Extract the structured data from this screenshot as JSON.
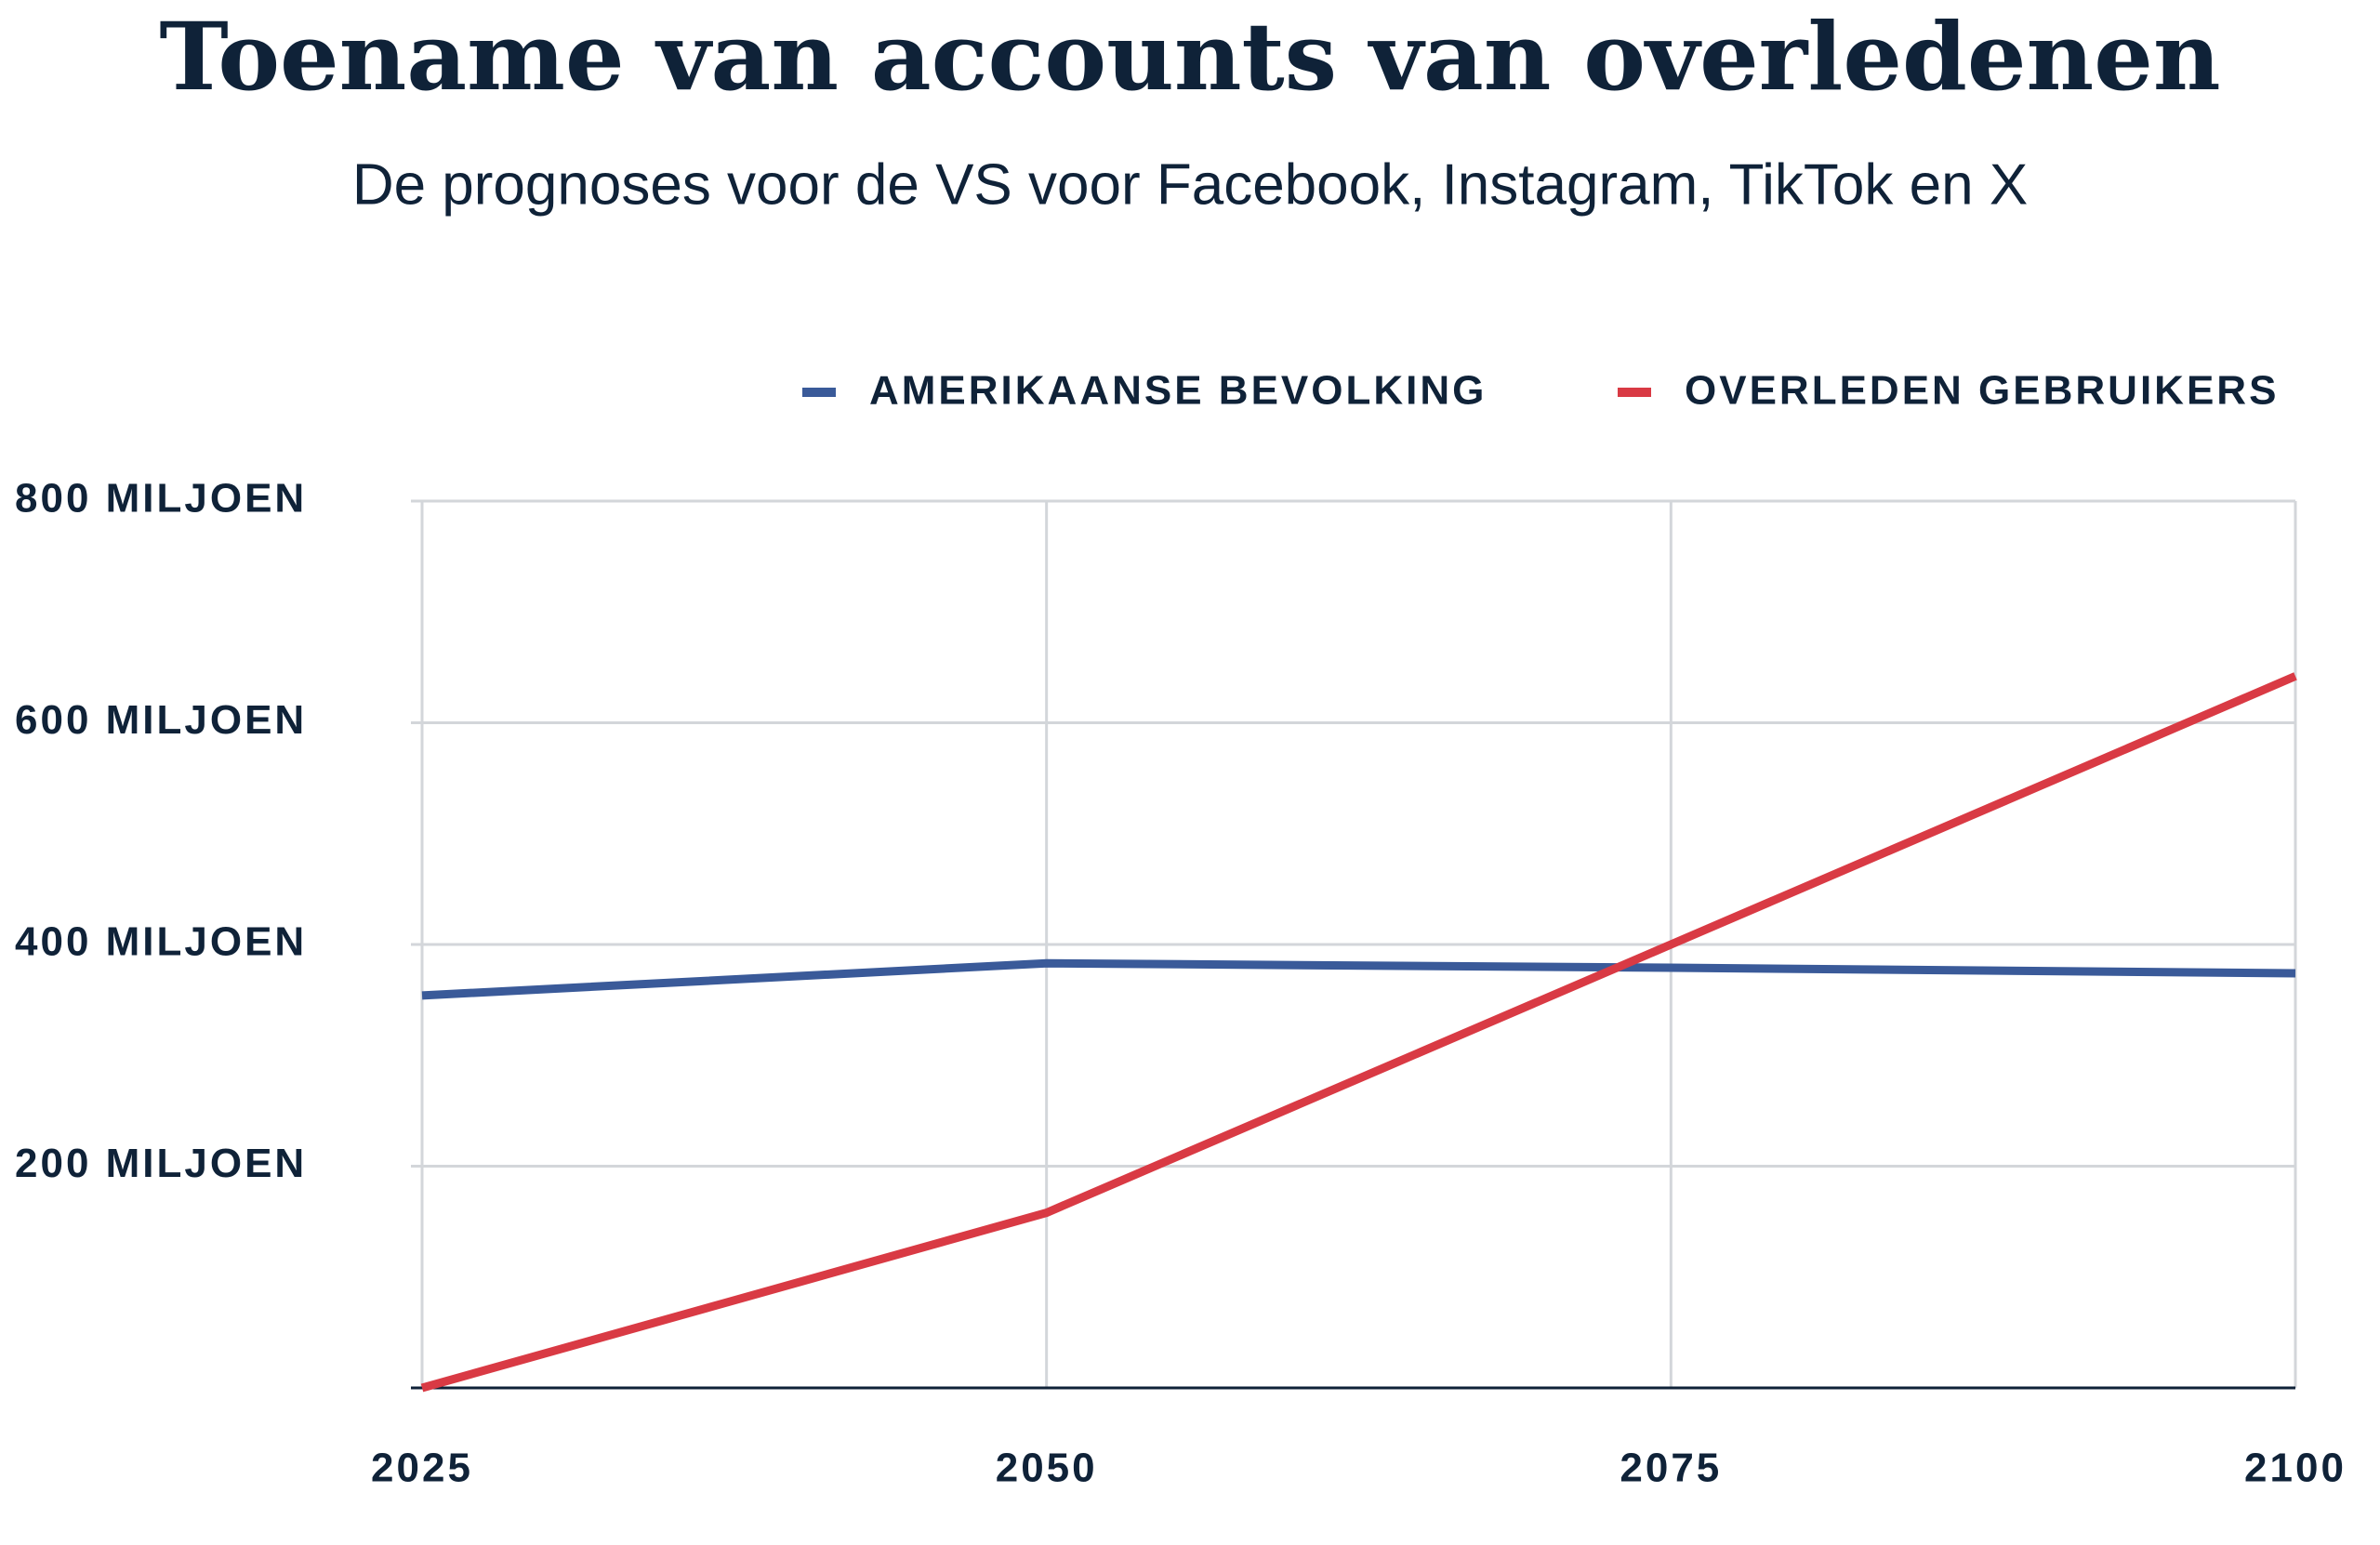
{
  "chart_data": {
    "type": "line",
    "title": "Toename van accounts van overledenen",
    "subtitle": "De prognoses voor de VS voor Facebook, Instagram, TikTok en X",
    "x": [
      2025,
      2050,
      2075,
      2100
    ],
    "series": [
      {
        "name": "AMERIKAANSE BEVOLKING",
        "color": "#3a5a99",
        "values": [
          354,
          383,
          379,
          374
        ]
      },
      {
        "name": "OVERLEDEN GEBRUIKERS",
        "color": "#d93a44",
        "values": [
          0,
          158,
          400,
          642
        ]
      }
    ],
    "xlim": [
      2025,
      2100
    ],
    "xticks": [
      2025,
      2050,
      2075,
      2100
    ],
    "ylim": [
      0,
      800
    ],
    "yticks": [
      {
        "value": 200,
        "label": "200 MILJOEN"
      },
      {
        "value": 400,
        "label": "400 MILJOEN"
      },
      {
        "value": 600,
        "label": "600 MILJOEN"
      },
      {
        "value": 800,
        "label": "800 MILJOEN"
      }
    ],
    "grid": true
  }
}
